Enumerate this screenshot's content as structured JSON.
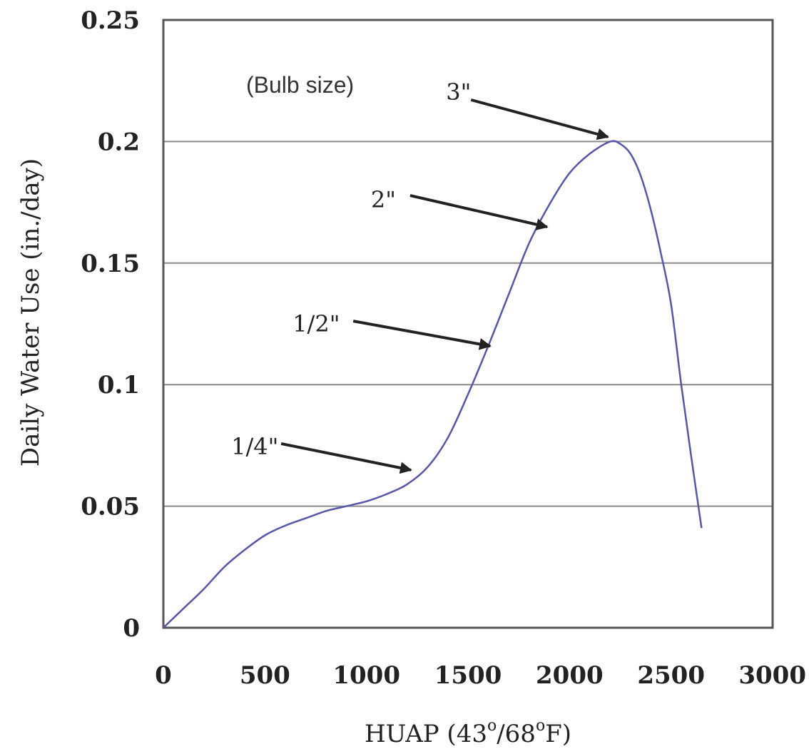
{
  "chart_data": {
    "type": "line",
    "title": "",
    "xlabel": "HUAP (43°/68°F)",
    "xlabel_parts": {
      "main": "HUAP (43",
      "sup1": "o",
      "mid": "/68",
      "sup2": "o",
      "end": "F)"
    },
    "ylabel": "Daily Water Use (in./day)",
    "xlim": [
      0,
      3000
    ],
    "ylim": [
      0,
      0.25
    ],
    "x_ticks": [
      0,
      500,
      1000,
      1500,
      2000,
      2500,
      3000
    ],
    "y_ticks": [
      0,
      0.05,
      0.1,
      0.15,
      0.2,
      0.25
    ],
    "x_tick_labels": [
      "0",
      "500",
      "1000",
      "1500",
      "2000",
      "2500",
      "3000"
    ],
    "y_tick_labels": [
      "0",
      "0.05",
      "0.1",
      "0.15",
      "0.2",
      "0.25"
    ],
    "grid": "horizontal",
    "series": [
      {
        "color": "#5757a8",
        "x": [
          0,
          100,
          200,
          300,
          400,
          500,
          600,
          700,
          800,
          900,
          1000,
          1100,
          1200,
          1300,
          1400,
          1500,
          1600,
          1700,
          1800,
          1900,
          2000,
          2100,
          2200,
          2250,
          2300,
          2350,
          2400,
          2450,
          2500,
          2550,
          2600,
          2650
        ],
        "y": [
          0,
          0.008,
          0.016,
          0.025,
          0.032,
          0.038,
          0.042,
          0.045,
          0.048,
          0.05,
          0.052,
          0.055,
          0.059,
          0.066,
          0.078,
          0.096,
          0.116,
          0.137,
          0.158,
          0.174,
          0.187,
          0.195,
          0.2,
          0.199,
          0.195,
          0.186,
          0.172,
          0.154,
          0.133,
          0.1,
          0.07,
          0.041
        ]
      }
    ],
    "annotation_title": "(Bulb size)",
    "annotations": [
      {
        "label": "1/4\"",
        "x": 1230,
        "y": 0.064
      },
      {
        "label": "1/2\"",
        "x": 1620,
        "y": 0.115
      },
      {
        "label": "2\"",
        "x": 1900,
        "y": 0.164
      },
      {
        "label": "3\"",
        "x": 2200,
        "y": 0.201
      }
    ]
  }
}
